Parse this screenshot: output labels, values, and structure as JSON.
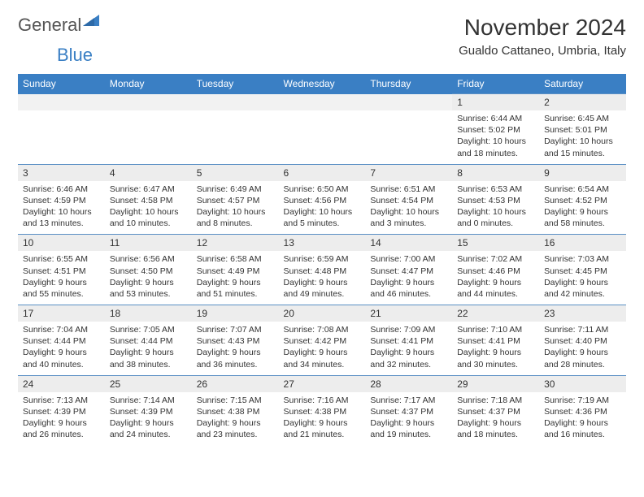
{
  "brand": {
    "word1": "General",
    "word2": "Blue"
  },
  "title": "November 2024",
  "location": "Gualdo Cattaneo, Umbria, Italy",
  "colors": {
    "header_bg": "#3a7fc4",
    "header_text": "#ffffff",
    "daynum_bg": "#ededed",
    "daynum_border": "#5a8fc4",
    "text": "#333333",
    "logo_gray": "#555555",
    "logo_blue": "#3a7fc4"
  },
  "days_of_week": [
    "Sunday",
    "Monday",
    "Tuesday",
    "Wednesday",
    "Thursday",
    "Friday",
    "Saturday"
  ],
  "weeks": [
    {
      "nums": [
        "",
        "",
        "",
        "",
        "",
        "1",
        "2"
      ],
      "cells": [
        null,
        null,
        null,
        null,
        null,
        {
          "sunrise": "Sunrise: 6:44 AM",
          "sunset": "Sunset: 5:02 PM",
          "daylight1": "Daylight: 10 hours",
          "daylight2": "and 18 minutes."
        },
        {
          "sunrise": "Sunrise: 6:45 AM",
          "sunset": "Sunset: 5:01 PM",
          "daylight1": "Daylight: 10 hours",
          "daylight2": "and 15 minutes."
        }
      ]
    },
    {
      "nums": [
        "3",
        "4",
        "5",
        "6",
        "7",
        "8",
        "9"
      ],
      "cells": [
        {
          "sunrise": "Sunrise: 6:46 AM",
          "sunset": "Sunset: 4:59 PM",
          "daylight1": "Daylight: 10 hours",
          "daylight2": "and 13 minutes."
        },
        {
          "sunrise": "Sunrise: 6:47 AM",
          "sunset": "Sunset: 4:58 PM",
          "daylight1": "Daylight: 10 hours",
          "daylight2": "and 10 minutes."
        },
        {
          "sunrise": "Sunrise: 6:49 AM",
          "sunset": "Sunset: 4:57 PM",
          "daylight1": "Daylight: 10 hours",
          "daylight2": "and 8 minutes."
        },
        {
          "sunrise": "Sunrise: 6:50 AM",
          "sunset": "Sunset: 4:56 PM",
          "daylight1": "Daylight: 10 hours",
          "daylight2": "and 5 minutes."
        },
        {
          "sunrise": "Sunrise: 6:51 AM",
          "sunset": "Sunset: 4:54 PM",
          "daylight1": "Daylight: 10 hours",
          "daylight2": "and 3 minutes."
        },
        {
          "sunrise": "Sunrise: 6:53 AM",
          "sunset": "Sunset: 4:53 PM",
          "daylight1": "Daylight: 10 hours",
          "daylight2": "and 0 minutes."
        },
        {
          "sunrise": "Sunrise: 6:54 AM",
          "sunset": "Sunset: 4:52 PM",
          "daylight1": "Daylight: 9 hours",
          "daylight2": "and 58 minutes."
        }
      ]
    },
    {
      "nums": [
        "10",
        "11",
        "12",
        "13",
        "14",
        "15",
        "16"
      ],
      "cells": [
        {
          "sunrise": "Sunrise: 6:55 AM",
          "sunset": "Sunset: 4:51 PM",
          "daylight1": "Daylight: 9 hours",
          "daylight2": "and 55 minutes."
        },
        {
          "sunrise": "Sunrise: 6:56 AM",
          "sunset": "Sunset: 4:50 PM",
          "daylight1": "Daylight: 9 hours",
          "daylight2": "and 53 minutes."
        },
        {
          "sunrise": "Sunrise: 6:58 AM",
          "sunset": "Sunset: 4:49 PM",
          "daylight1": "Daylight: 9 hours",
          "daylight2": "and 51 minutes."
        },
        {
          "sunrise": "Sunrise: 6:59 AM",
          "sunset": "Sunset: 4:48 PM",
          "daylight1": "Daylight: 9 hours",
          "daylight2": "and 49 minutes."
        },
        {
          "sunrise": "Sunrise: 7:00 AM",
          "sunset": "Sunset: 4:47 PM",
          "daylight1": "Daylight: 9 hours",
          "daylight2": "and 46 minutes."
        },
        {
          "sunrise": "Sunrise: 7:02 AM",
          "sunset": "Sunset: 4:46 PM",
          "daylight1": "Daylight: 9 hours",
          "daylight2": "and 44 minutes."
        },
        {
          "sunrise": "Sunrise: 7:03 AM",
          "sunset": "Sunset: 4:45 PM",
          "daylight1": "Daylight: 9 hours",
          "daylight2": "and 42 minutes."
        }
      ]
    },
    {
      "nums": [
        "17",
        "18",
        "19",
        "20",
        "21",
        "22",
        "23"
      ],
      "cells": [
        {
          "sunrise": "Sunrise: 7:04 AM",
          "sunset": "Sunset: 4:44 PM",
          "daylight1": "Daylight: 9 hours",
          "daylight2": "and 40 minutes."
        },
        {
          "sunrise": "Sunrise: 7:05 AM",
          "sunset": "Sunset: 4:44 PM",
          "daylight1": "Daylight: 9 hours",
          "daylight2": "and 38 minutes."
        },
        {
          "sunrise": "Sunrise: 7:07 AM",
          "sunset": "Sunset: 4:43 PM",
          "daylight1": "Daylight: 9 hours",
          "daylight2": "and 36 minutes."
        },
        {
          "sunrise": "Sunrise: 7:08 AM",
          "sunset": "Sunset: 4:42 PM",
          "daylight1": "Daylight: 9 hours",
          "daylight2": "and 34 minutes."
        },
        {
          "sunrise": "Sunrise: 7:09 AM",
          "sunset": "Sunset: 4:41 PM",
          "daylight1": "Daylight: 9 hours",
          "daylight2": "and 32 minutes."
        },
        {
          "sunrise": "Sunrise: 7:10 AM",
          "sunset": "Sunset: 4:41 PM",
          "daylight1": "Daylight: 9 hours",
          "daylight2": "and 30 minutes."
        },
        {
          "sunrise": "Sunrise: 7:11 AM",
          "sunset": "Sunset: 4:40 PM",
          "daylight1": "Daylight: 9 hours",
          "daylight2": "and 28 minutes."
        }
      ]
    },
    {
      "nums": [
        "24",
        "25",
        "26",
        "27",
        "28",
        "29",
        "30"
      ],
      "cells": [
        {
          "sunrise": "Sunrise: 7:13 AM",
          "sunset": "Sunset: 4:39 PM",
          "daylight1": "Daylight: 9 hours",
          "daylight2": "and 26 minutes."
        },
        {
          "sunrise": "Sunrise: 7:14 AM",
          "sunset": "Sunset: 4:39 PM",
          "daylight1": "Daylight: 9 hours",
          "daylight2": "and 24 minutes."
        },
        {
          "sunrise": "Sunrise: 7:15 AM",
          "sunset": "Sunset: 4:38 PM",
          "daylight1": "Daylight: 9 hours",
          "daylight2": "and 23 minutes."
        },
        {
          "sunrise": "Sunrise: 7:16 AM",
          "sunset": "Sunset: 4:38 PM",
          "daylight1": "Daylight: 9 hours",
          "daylight2": "and 21 minutes."
        },
        {
          "sunrise": "Sunrise: 7:17 AM",
          "sunset": "Sunset: 4:37 PM",
          "daylight1": "Daylight: 9 hours",
          "daylight2": "and 19 minutes."
        },
        {
          "sunrise": "Sunrise: 7:18 AM",
          "sunset": "Sunset: 4:37 PM",
          "daylight1": "Daylight: 9 hours",
          "daylight2": "and 18 minutes."
        },
        {
          "sunrise": "Sunrise: 7:19 AM",
          "sunset": "Sunset: 4:36 PM",
          "daylight1": "Daylight: 9 hours",
          "daylight2": "and 16 minutes."
        }
      ]
    }
  ]
}
